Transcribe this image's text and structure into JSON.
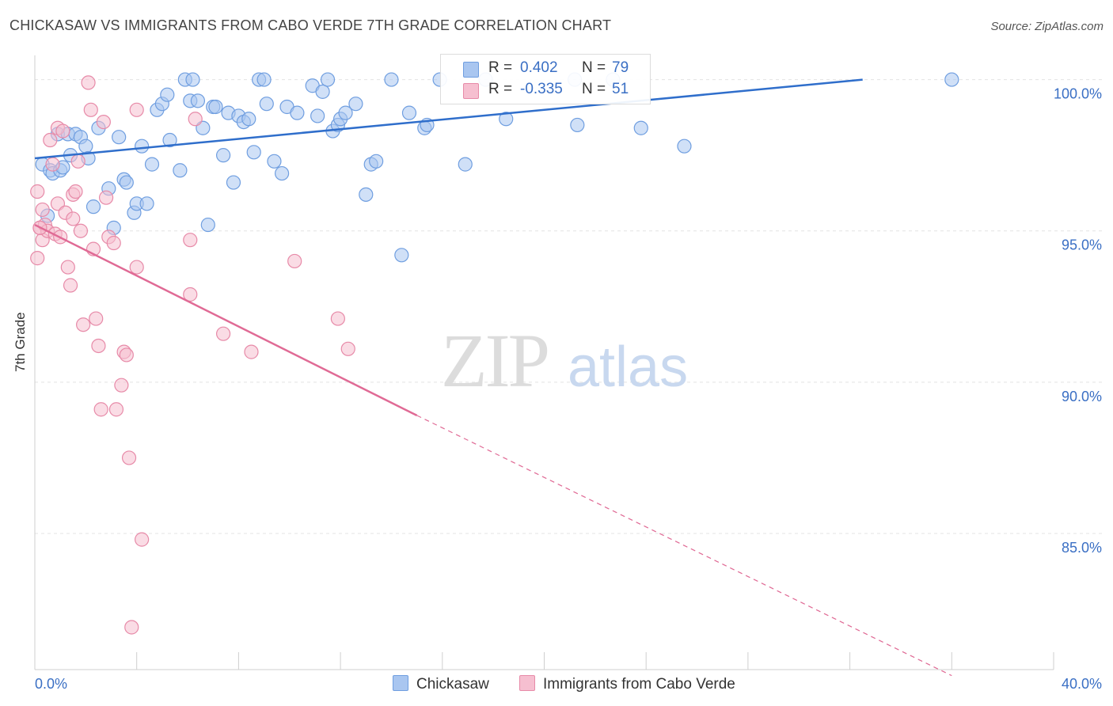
{
  "title": "CHICKASAW VS IMMIGRANTS FROM CABO VERDE 7TH GRADE CORRELATION CHART",
  "source": "Source: ZipAtlas.com",
  "watermark": {
    "zip": "ZIP",
    "atlas": "atlas"
  },
  "colors": {
    "blue_fill": "#a9c6f0",
    "blue_stroke": "#6f9ee0",
    "blue_line": "#2f6ecb",
    "pink_fill": "#f6bfd0",
    "pink_stroke": "#e78aa8",
    "pink_line": "#e06a95",
    "axis_text": "#3a6fc4",
    "grid": "#e3e3e3"
  },
  "legend": {
    "series1": {
      "r_label": "R =",
      "r_value": "0.402",
      "n_label": "N =",
      "n_value": "79"
    },
    "series2": {
      "r_label": "R =",
      "r_value": "-0.335",
      "n_label": "N =",
      "n_value": "51"
    }
  },
  "chart_data": {
    "type": "scatter",
    "title": "CHICKASAW VS IMMIGRANTS FROM CABO VERDE 7TH GRADE CORRELATION CHART",
    "xlabel": "",
    "ylabel": "7th Grade",
    "xlim": [
      0,
      40
    ],
    "ylim": [
      80.5,
      100.8
    ],
    "x_tick_labels": [
      "0.0%",
      "40.0%"
    ],
    "y_ticks": [
      85,
      90,
      95,
      100
    ],
    "y_tick_labels": [
      "85.0%",
      "90.0%",
      "95.0%",
      "100.0%"
    ],
    "grid": true,
    "legend_position": "top-center",
    "series": [
      {
        "name": "Chickasaw",
        "r": 0.402,
        "n": 79,
        "trend": {
          "x0": 0,
          "y0": 97.4,
          "x1": 32.5,
          "y1": 100.0
        },
        "points": [
          [
            0.3,
            97.2
          ],
          [
            0.5,
            95.5
          ],
          [
            0.6,
            97.0
          ],
          [
            0.7,
            96.9
          ],
          [
            0.9,
            98.2
          ],
          [
            1.0,
            97.0
          ],
          [
            1.1,
            97.1
          ],
          [
            1.3,
            98.2
          ],
          [
            1.4,
            97.5
          ],
          [
            1.6,
            98.2
          ],
          [
            1.8,
            98.1
          ],
          [
            2.0,
            97.8
          ],
          [
            2.1,
            97.4
          ],
          [
            2.3,
            95.8
          ],
          [
            2.5,
            98.4
          ],
          [
            2.9,
            96.4
          ],
          [
            3.1,
            95.1
          ],
          [
            3.3,
            98.1
          ],
          [
            3.5,
            96.7
          ],
          [
            3.6,
            96.6
          ],
          [
            3.9,
            95.6
          ],
          [
            4.0,
            95.9
          ],
          [
            4.2,
            97.8
          ],
          [
            4.4,
            95.9
          ],
          [
            4.6,
            97.2
          ],
          [
            4.8,
            99.0
          ],
          [
            5.0,
            99.2
          ],
          [
            5.2,
            99.5
          ],
          [
            5.3,
            98.0
          ],
          [
            5.7,
            97.0
          ],
          [
            5.9,
            100.0
          ],
          [
            6.1,
            99.3
          ],
          [
            6.2,
            100.0
          ],
          [
            6.4,
            99.3
          ],
          [
            6.6,
            98.4
          ],
          [
            6.8,
            95.2
          ],
          [
            7.0,
            99.1
          ],
          [
            7.1,
            99.1
          ],
          [
            7.4,
            97.5
          ],
          [
            7.6,
            98.9
          ],
          [
            7.8,
            96.6
          ],
          [
            8.0,
            98.8
          ],
          [
            8.2,
            98.6
          ],
          [
            8.4,
            98.7
          ],
          [
            8.6,
            97.6
          ],
          [
            8.8,
            100.0
          ],
          [
            9.0,
            100.0
          ],
          [
            9.1,
            99.2
          ],
          [
            9.4,
            97.3
          ],
          [
            9.7,
            96.9
          ],
          [
            9.9,
            99.1
          ],
          [
            10.3,
            98.9
          ],
          [
            10.9,
            99.8
          ],
          [
            11.1,
            98.8
          ],
          [
            11.3,
            99.6
          ],
          [
            11.5,
            100.0
          ],
          [
            11.7,
            98.3
          ],
          [
            11.9,
            98.5
          ],
          [
            12.0,
            98.7
          ],
          [
            12.2,
            98.9
          ],
          [
            12.6,
            99.2
          ],
          [
            13.0,
            96.2
          ],
          [
            13.2,
            97.2
          ],
          [
            13.4,
            97.3
          ],
          [
            14.0,
            100.0
          ],
          [
            14.4,
            94.2
          ],
          [
            14.7,
            98.9
          ],
          [
            15.3,
            98.4
          ],
          [
            15.4,
            98.5
          ],
          [
            15.9,
            100.0
          ],
          [
            16.9,
            97.2
          ],
          [
            17.7,
            100.0
          ],
          [
            18.5,
            98.7
          ],
          [
            21.2,
            100.0
          ],
          [
            21.3,
            98.5
          ],
          [
            22.7,
            100.0
          ],
          [
            23.8,
            98.4
          ],
          [
            25.5,
            97.8
          ],
          [
            36.0,
            100.0
          ]
        ]
      },
      {
        "name": "Immigrants from Cabo Verde",
        "r": -0.335,
        "n": 51,
        "trend": {
          "x0": 0,
          "y0": 95.2,
          "x1": 15.0,
          "y1": 88.9,
          "dashed_to_x": 36.0,
          "dashed_to_y": 80.3
        },
        "points": [
          [
            0.1,
            96.3
          ],
          [
            0.1,
            94.1
          ],
          [
            0.2,
            95.1
          ],
          [
            0.3,
            94.7
          ],
          [
            0.3,
            95.7
          ],
          [
            0.4,
            95.2
          ],
          [
            0.5,
            95.0
          ],
          [
            0.6,
            98.0
          ],
          [
            0.7,
            97.2
          ],
          [
            0.8,
            94.9
          ],
          [
            0.9,
            95.9
          ],
          [
            0.9,
            98.4
          ],
          [
            1.0,
            94.8
          ],
          [
            1.1,
            98.3
          ],
          [
            1.2,
            95.6
          ],
          [
            1.3,
            93.8
          ],
          [
            1.4,
            93.2
          ],
          [
            1.5,
            96.2
          ],
          [
            1.6,
            96.3
          ],
          [
            1.5,
            95.4
          ],
          [
            1.7,
            97.3
          ],
          [
            1.8,
            95.0
          ],
          [
            1.9,
            91.9
          ],
          [
            2.1,
            99.9
          ],
          [
            2.2,
            99.0
          ],
          [
            2.3,
            94.4
          ],
          [
            2.4,
            92.1
          ],
          [
            2.5,
            91.2
          ],
          [
            2.6,
            89.1
          ],
          [
            2.7,
            98.6
          ],
          [
            2.8,
            96.1
          ],
          [
            2.9,
            94.8
          ],
          [
            3.1,
            94.6
          ],
          [
            3.2,
            89.1
          ],
          [
            3.4,
            89.9
          ],
          [
            3.5,
            91.0
          ],
          [
            3.6,
            90.9
          ],
          [
            3.7,
            87.5
          ],
          [
            3.8,
            81.9
          ],
          [
            4.0,
            99.0
          ],
          [
            4.0,
            93.8
          ],
          [
            4.2,
            84.8
          ],
          [
            6.1,
            94.7
          ],
          [
            6.1,
            92.9
          ],
          [
            6.3,
            98.7
          ],
          [
            7.4,
            91.6
          ],
          [
            8.5,
            91.0
          ],
          [
            10.2,
            94.0
          ],
          [
            11.9,
            92.1
          ],
          [
            12.3,
            91.1
          ],
          [
            0.2,
            95.1
          ]
        ]
      }
    ]
  },
  "bottom_legend": {
    "series1": "Chickasaw",
    "series2": "Immigrants from Cabo Verde"
  }
}
